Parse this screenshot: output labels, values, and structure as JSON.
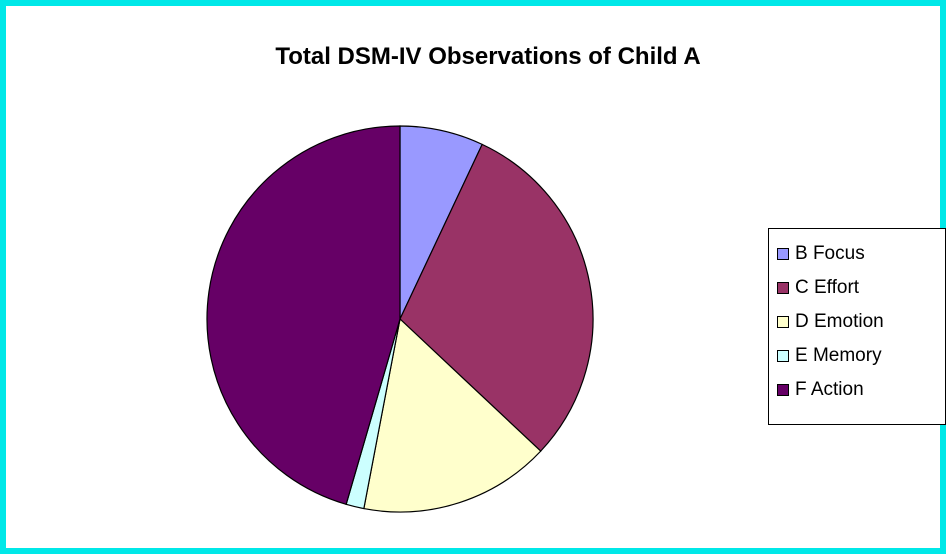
{
  "chart_data": {
    "type": "pie",
    "title": "Total DSM-IV Observations of Child A",
    "categories": [
      "B Focus",
      "C Effort",
      "D Emotion",
      "E Memory",
      "F Action"
    ],
    "values": [
      7,
      30,
      16,
      1.5,
      45.5
    ],
    "colors": [
      "#9999ff",
      "#993366",
      "#ffffcc",
      "#ccffff",
      "#660066"
    ],
    "legend_position": "right"
  }
}
